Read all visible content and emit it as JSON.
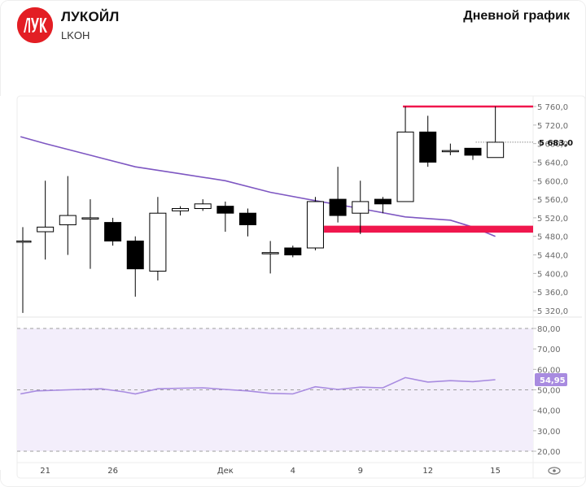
{
  "header": {
    "company": "ЛУКОЙЛ",
    "ticker": "LKOH",
    "chart_title": "Дневной график",
    "logo_text": "ЛУК"
  },
  "colors": {
    "brand_red": "#e31e24",
    "resistance_line": "#f0174d",
    "support_zone": "#f0174d",
    "ma_line": "#7e57c2",
    "rsi_line": "#a88be0",
    "rsi_band": "#f3eefb",
    "up_candle": "#ffffff",
    "down_candle": "#000000"
  },
  "chart_data": [
    {
      "type": "candlestick",
      "y_axis_ticks": [
        "5 760,0",
        "5 720,0",
        "5 680,0",
        "5 640,0",
        "5 600,0",
        "5 560,0",
        "5 520,0",
        "5 480,0",
        "5 440,0",
        "5 400,0",
        "5 360,0",
        "5 320,0"
      ],
      "ylim": [
        5310,
        5775
      ],
      "current_price_label": "5 683,0",
      "x_tick_labels": [
        {
          "label": "21",
          "index": 1
        },
        {
          "label": "26",
          "index": 4
        },
        {
          "label": "Дек",
          "index": 9
        },
        {
          "label": "4",
          "index": 12
        },
        {
          "label": "9",
          "index": 15
        },
        {
          "label": "12",
          "index": 18
        },
        {
          "label": "15",
          "index": 21
        }
      ],
      "candles": [
        {
          "o": 5470,
          "h": 5500,
          "l": 5315,
          "c": 5470
        },
        {
          "o": 5490,
          "h": 5600,
          "l": 5430,
          "c": 5500
        },
        {
          "o": 5505,
          "h": 5610,
          "l": 5440,
          "c": 5525
        },
        {
          "o": 5520,
          "h": 5560,
          "l": 5410,
          "c": 5520
        },
        {
          "o": 5510,
          "h": 5520,
          "l": 5460,
          "c": 5470
        },
        {
          "o": 5470,
          "h": 5480,
          "l": 5350,
          "c": 5410
        },
        {
          "o": 5405,
          "h": 5565,
          "l": 5385,
          "c": 5530
        },
        {
          "o": 5535,
          "h": 5545,
          "l": 5525,
          "c": 5540
        },
        {
          "o": 5540,
          "h": 5560,
          "l": 5535,
          "c": 5550
        },
        {
          "o": 5545,
          "h": 5555,
          "l": 5490,
          "c": 5530
        },
        {
          "o": 5530,
          "h": 5540,
          "l": 5480,
          "c": 5505
        },
        {
          "o": 5445,
          "h": 5470,
          "l": 5400,
          "c": 5445
        },
        {
          "o": 5455,
          "h": 5460,
          "l": 5435,
          "c": 5440
        },
        {
          "o": 5455,
          "h": 5565,
          "l": 5450,
          "c": 5555
        },
        {
          "o": 5560,
          "h": 5630,
          "l": 5510,
          "c": 5525
        },
        {
          "o": 5530,
          "h": 5600,
          "l": 5485,
          "c": 5555
        },
        {
          "o": 5560,
          "h": 5565,
          "l": 5530,
          "c": 5550
        },
        {
          "o": 5555,
          "h": 5760,
          "l": 5555,
          "c": 5705
        },
        {
          "o": 5705,
          "h": 5740,
          "l": 5630,
          "c": 5640
        },
        {
          "o": 5665,
          "h": 5680,
          "l": 5655,
          "c": 5665
        },
        {
          "o": 5670,
          "h": 5670,
          "l": 5645,
          "c": 5655
        },
        {
          "o": 5650,
          "h": 5760,
          "l": 5650,
          "c": 5683
        }
      ],
      "moving_average": [
        {
          "i": -0.1,
          "v": 5695
        },
        {
          "i": 1,
          "v": 5680
        },
        {
          "i": 3,
          "v": 5655
        },
        {
          "i": 5,
          "v": 5630
        },
        {
          "i": 7,
          "v": 5615
        },
        {
          "i": 9,
          "v": 5600
        },
        {
          "i": 11,
          "v": 5575
        },
        {
          "i": 13,
          "v": 5557
        },
        {
          "i": 15,
          "v": 5540
        },
        {
          "i": 17,
          "v": 5522
        },
        {
          "i": 19,
          "v": 5515
        },
        {
          "i": 20,
          "v": 5500
        },
        {
          "i": 21,
          "v": 5480
        }
      ],
      "resistance_level": {
        "value": 5760,
        "from_index": 17
      },
      "support_zone": {
        "from": 5488,
        "to": 5503,
        "from_index": 14
      }
    },
    {
      "type": "line",
      "indicator": "RSI",
      "y_axis_ticks": [
        "80,00",
        "70,00",
        "60,00",
        "50,00",
        "40,00",
        "30,00",
        "20,00"
      ],
      "ylim": [
        17,
        83
      ],
      "band": [
        20,
        80
      ],
      "current_value_label": "54,95",
      "values": [
        {
          "i": -0.1,
          "v": 48
        },
        {
          "i": 0.6,
          "v": 49.5
        },
        {
          "i": 2,
          "v": 50
        },
        {
          "i": 3.5,
          "v": 50.5
        },
        {
          "i": 4.5,
          "v": 49
        },
        {
          "i": 5,
          "v": 48
        },
        {
          "i": 6,
          "v": 50.5
        },
        {
          "i": 7,
          "v": 50.8
        },
        {
          "i": 8,
          "v": 51
        },
        {
          "i": 9,
          "v": 50.2
        },
        {
          "i": 10,
          "v": 49.5
        },
        {
          "i": 11,
          "v": 48.3
        },
        {
          "i": 12,
          "v": 48
        },
        {
          "i": 13,
          "v": 51.5
        },
        {
          "i": 14,
          "v": 50.2
        },
        {
          "i": 15,
          "v": 51.3
        },
        {
          "i": 16,
          "v": 51
        },
        {
          "i": 17,
          "v": 56
        },
        {
          "i": 18,
          "v": 53.8
        },
        {
          "i": 19,
          "v": 54.5
        },
        {
          "i": 20,
          "v": 54
        },
        {
          "i": 21,
          "v": 54.95
        }
      ]
    }
  ]
}
